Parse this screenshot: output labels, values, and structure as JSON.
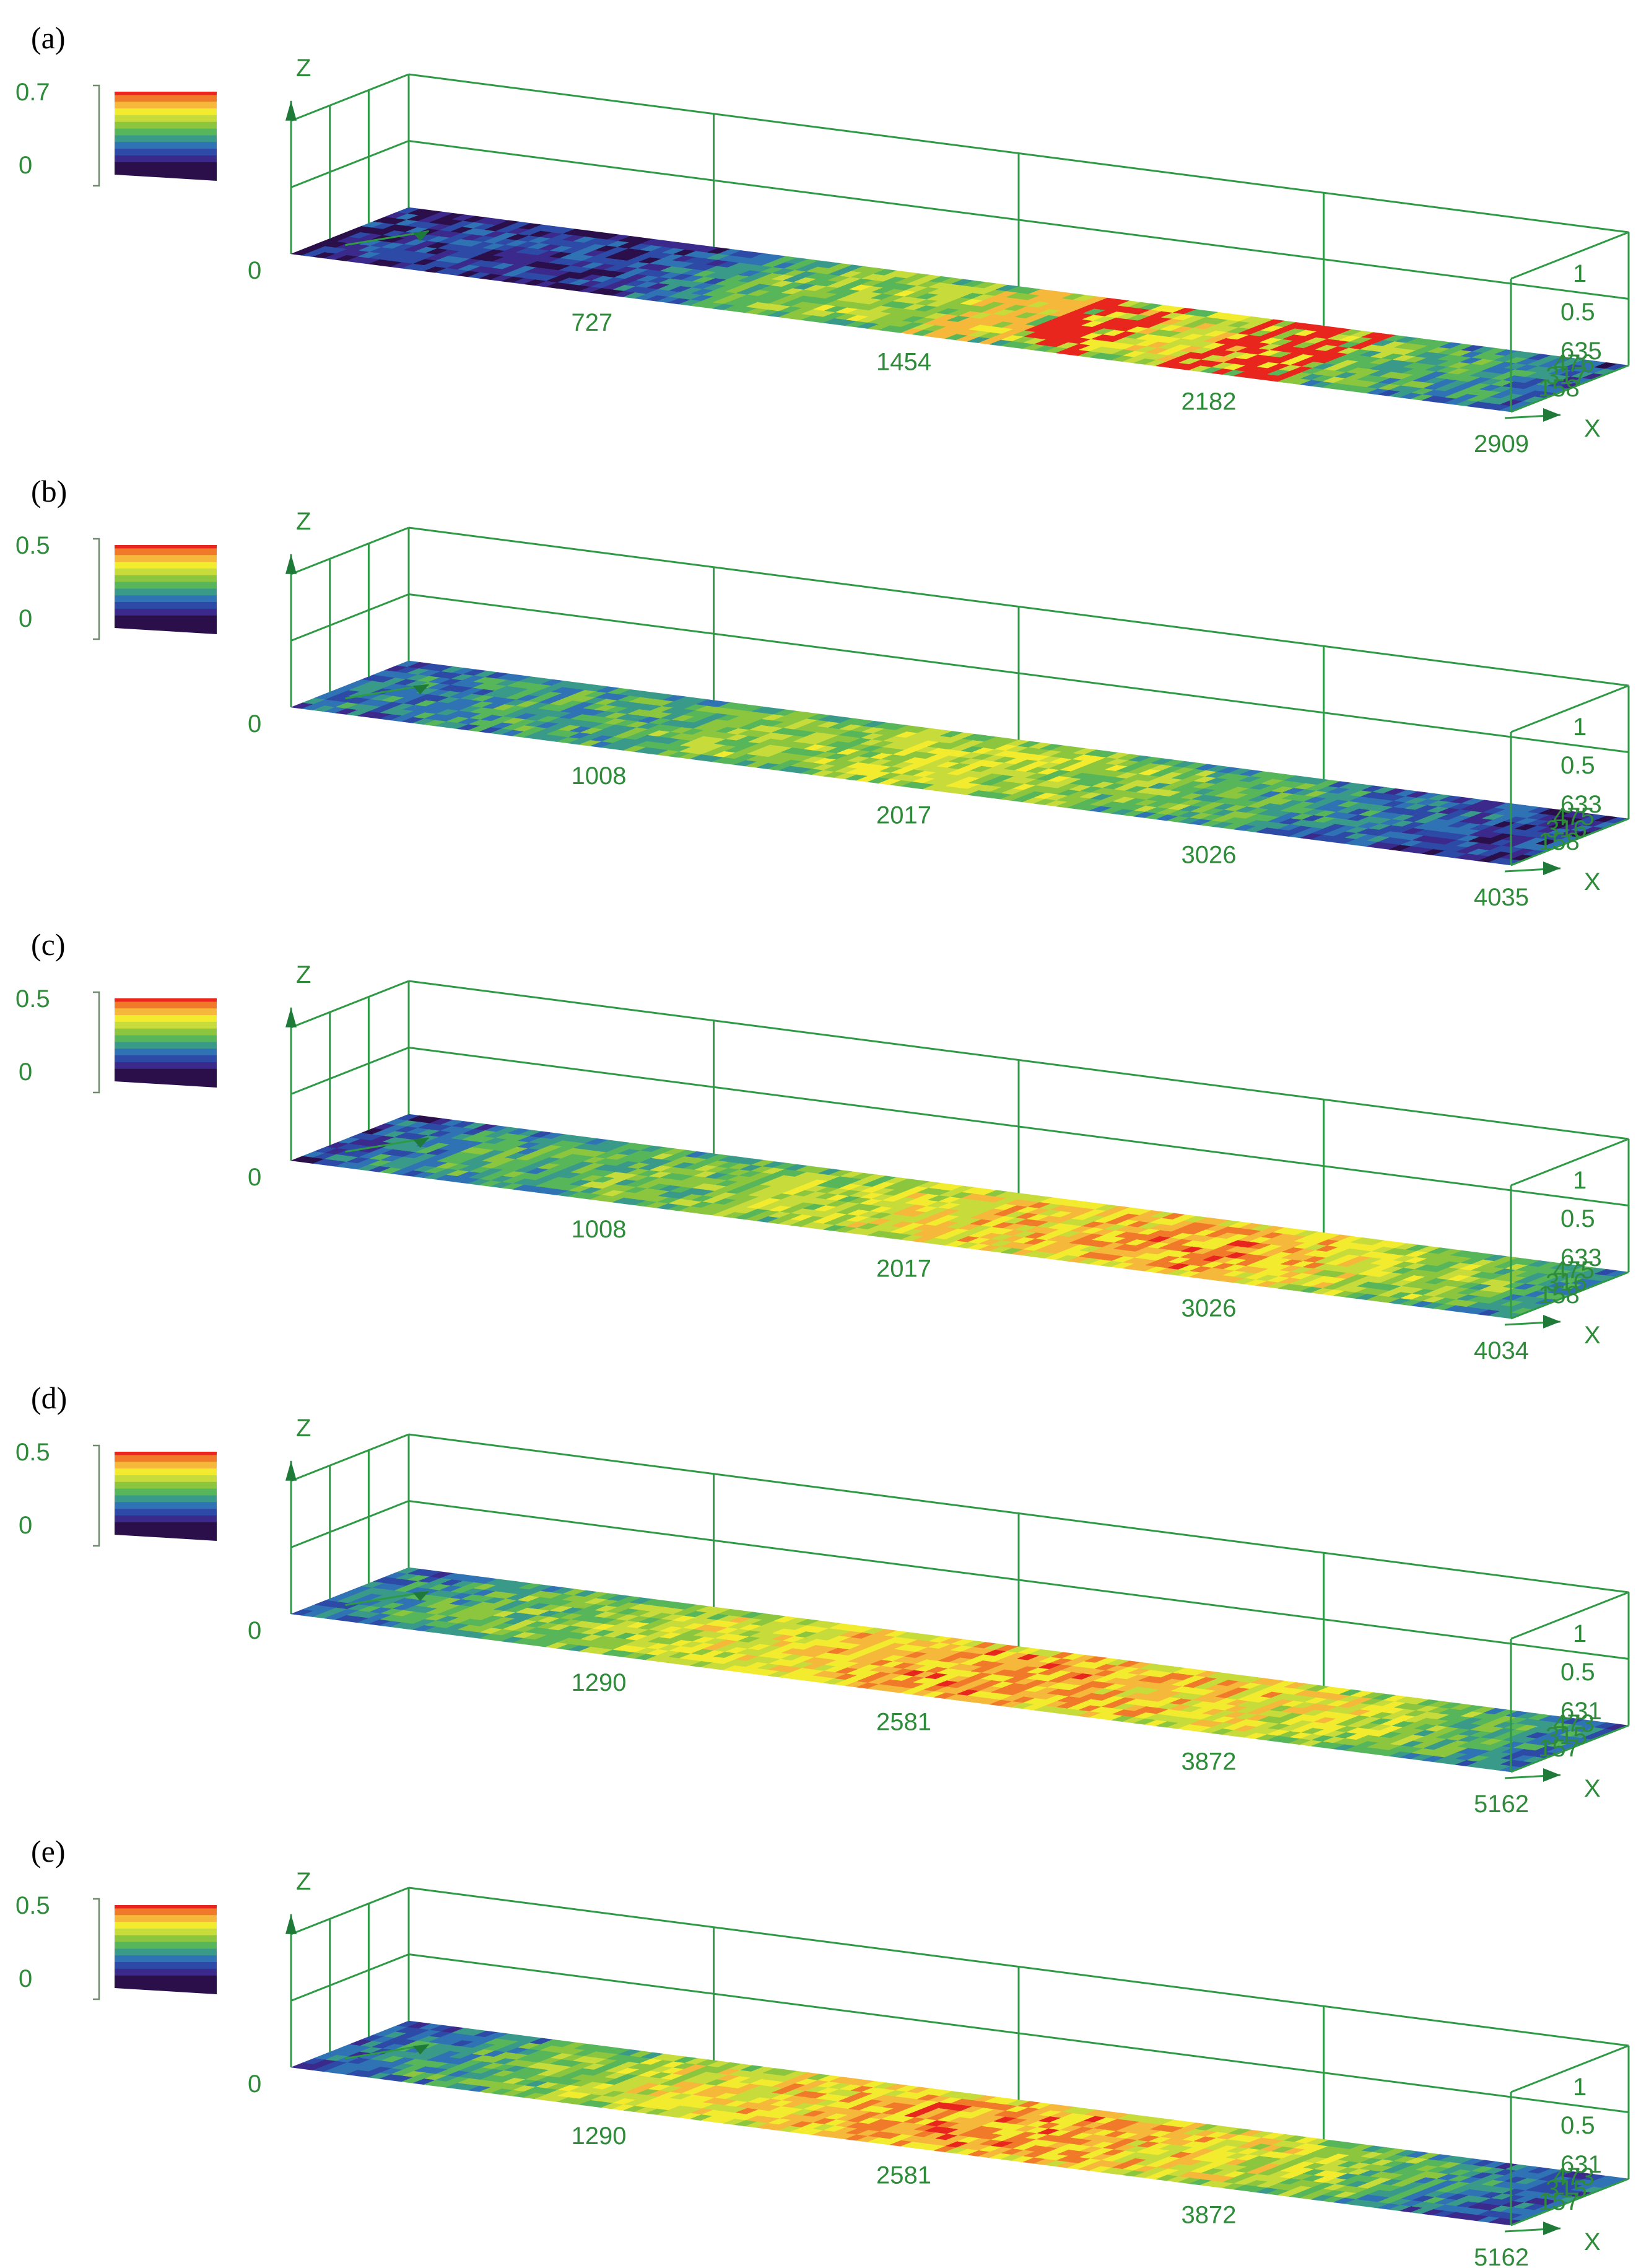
{
  "colors": {
    "axis": "#2e9a45",
    "label": "#2e8b3a",
    "colormap": [
      "#2a0f4a",
      "#3b2a8c",
      "#2c4aa6",
      "#2f73b5",
      "#3a9a8a",
      "#58b65a",
      "#8cc63f",
      "#c7dc3a",
      "#f3ec2e",
      "#f6b83a",
      "#f07a2a",
      "#e8261e"
    ]
  },
  "axis_names": {
    "x": "X",
    "z": "Z"
  },
  "panels": [
    {
      "label": "(a)",
      "legend": {
        "max": "0.7",
        "min": "0"
      },
      "x_ticks": [
        "0",
        "727",
        "1454",
        "2182",
        "2909"
      ],
      "z_ticks": [
        "1",
        "0.5"
      ],
      "y_ticks": [
        "635",
        "476",
        "317",
        "158"
      ]
    },
    {
      "label": "(b)",
      "legend": {
        "max": "0.5",
        "min": "0"
      },
      "x_ticks": [
        "0",
        "1008",
        "2017",
        "3026",
        "4035"
      ],
      "z_ticks": [
        "1",
        "0.5"
      ],
      "y_ticks": [
        "633",
        "475",
        "316",
        "158"
      ]
    },
    {
      "label": "(c)",
      "legend": {
        "max": "0.5",
        "min": "0"
      },
      "x_ticks": [
        "0",
        "1008",
        "2017",
        "3026",
        "4034"
      ],
      "z_ticks": [
        "1",
        "0.5"
      ],
      "y_ticks": [
        "633",
        "475",
        "316",
        "158"
      ]
    },
    {
      "label": "(d)",
      "legend": {
        "max": "0.5",
        "min": "0"
      },
      "x_ticks": [
        "0",
        "1290",
        "2581",
        "3872",
        "5162"
      ],
      "z_ticks": [
        "1",
        "0.5"
      ],
      "y_ticks": [
        "631",
        "473",
        "315",
        "157"
      ]
    },
    {
      "label": "(e)",
      "legend": {
        "max": "0.5",
        "min": "0"
      },
      "x_ticks": [
        "0",
        "1290",
        "2581",
        "3872",
        "5162"
      ],
      "z_ticks": [
        "1",
        "0.5"
      ],
      "y_ticks": [
        "631",
        "473",
        "315",
        "157"
      ]
    }
  ],
  "chart_data": [
    {
      "type": "heatmap",
      "panel": "(a)",
      "x_ticks": [
        0,
        727,
        1454,
        2182,
        2909
      ],
      "xlim": [
        0,
        2909
      ],
      "ylim": [
        0,
        635
      ],
      "zlim": [
        0,
        1
      ],
      "color_range": [
        0,
        0.7
      ],
      "x_profile_level": [
        0.15,
        0.2,
        0.2,
        0.18,
        0.15,
        0.2,
        0.35,
        0.5,
        0.6,
        0.62,
        0.6,
        0.62,
        0.65,
        0.7,
        0.72,
        0.75,
        0.72,
        0.55,
        0.5,
        0.45,
        0.35,
        0.25
      ],
      "hotspots": [
        {
          "x": 1750,
          "level": 1.0
        },
        {
          "x": 2150,
          "level": 1.0
        },
        {
          "x": 2250,
          "level": 1.0
        },
        {
          "x": 1550,
          "level": 0.9
        }
      ]
    },
    {
      "type": "heatmap",
      "panel": "(b)",
      "x_ticks": [
        0,
        1008,
        2017,
        3026,
        4035
      ],
      "xlim": [
        0,
        4035
      ],
      "ylim": [
        0,
        633
      ],
      "zlim": [
        0,
        1
      ],
      "color_range": [
        0,
        0.5
      ],
      "x_profile_level": [
        0.3,
        0.35,
        0.4,
        0.45,
        0.45,
        0.5,
        0.55,
        0.6,
        0.6,
        0.65,
        0.68,
        0.68,
        0.65,
        0.6,
        0.55,
        0.5,
        0.45,
        0.35,
        0.3,
        0.25,
        0.2,
        0.2
      ]
    },
    {
      "type": "heatmap",
      "panel": "(c)",
      "x_ticks": [
        0,
        1008,
        2017,
        3026,
        4034
      ],
      "xlim": [
        0,
        4034
      ],
      "ylim": [
        0,
        633
      ],
      "zlim": [
        0,
        1
      ],
      "color_range": [
        0,
        0.5
      ],
      "x_profile_level": [
        0.2,
        0.35,
        0.45,
        0.5,
        0.5,
        0.55,
        0.55,
        0.6,
        0.65,
        0.7,
        0.75,
        0.8,
        0.82,
        0.85,
        0.88,
        0.9,
        0.85,
        0.75,
        0.65,
        0.6,
        0.5,
        0.35
      ]
    },
    {
      "type": "heatmap",
      "panel": "(d)",
      "x_ticks": [
        0,
        1290,
        2581,
        3872,
        5162
      ],
      "xlim": [
        0,
        5162
      ],
      "ylim": [
        0,
        631
      ],
      "zlim": [
        0,
        1
      ],
      "color_range": [
        0,
        0.5
      ],
      "x_profile_level": [
        0.35,
        0.4,
        0.5,
        0.55,
        0.6,
        0.65,
        0.7,
        0.75,
        0.8,
        0.85,
        0.88,
        0.9,
        0.88,
        0.85,
        0.82,
        0.8,
        0.75,
        0.7,
        0.6,
        0.5,
        0.4,
        0.3
      ]
    },
    {
      "type": "heatmap",
      "panel": "(e)",
      "x_ticks": [
        0,
        1290,
        2581,
        3872,
        5162
      ],
      "xlim": [
        0,
        5162
      ],
      "ylim": [
        0,
        631
      ],
      "zlim": [
        0,
        1
      ],
      "color_range": [
        0,
        0.5
      ],
      "x_profile_level": [
        0.25,
        0.35,
        0.45,
        0.55,
        0.6,
        0.7,
        0.75,
        0.8,
        0.82,
        0.85,
        0.88,
        0.9,
        0.88,
        0.85,
        0.8,
        0.75,
        0.7,
        0.6,
        0.5,
        0.35,
        0.3,
        0.3
      ]
    }
  ]
}
